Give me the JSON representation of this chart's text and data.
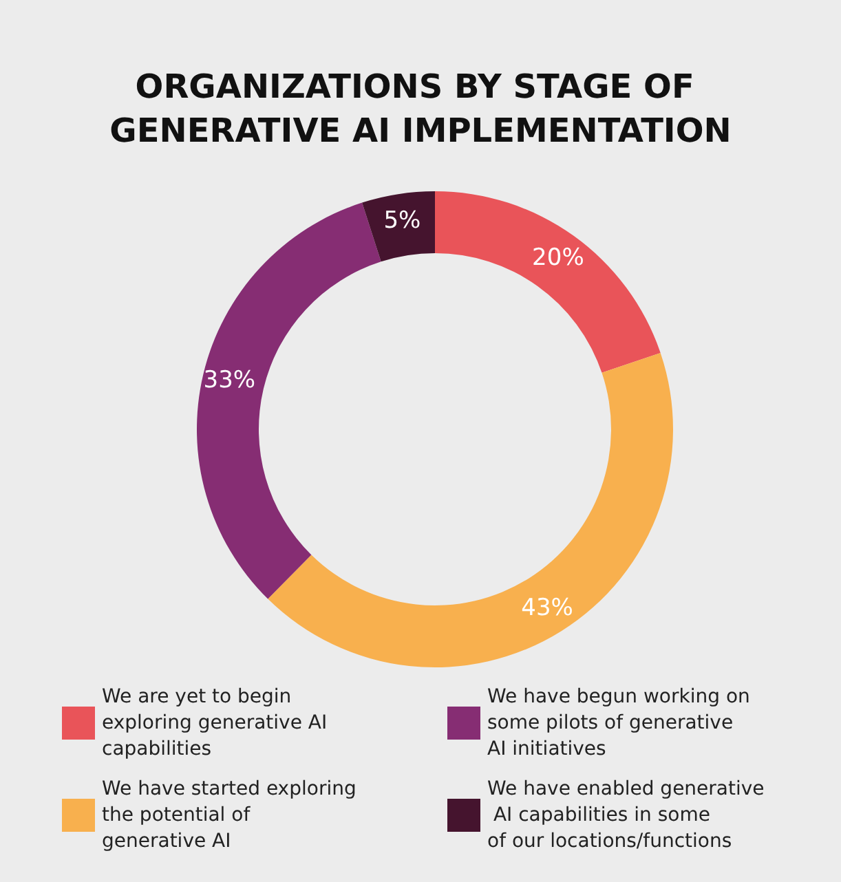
{
  "chart_data": {
    "type": "donut",
    "title": "ORGANIZATIONS BY STAGE OF GENERATIVE AI IMPLEMENTATION",
    "categories": [
      "We are yet to begin exploring generative AI capabilities",
      "We have started exploring the potential of generative AI",
      "We have begun working on some pilots of generative AI initiatives",
      "We have enabled generative AI capabilities in some of our locations/functions"
    ],
    "values": [
      20,
      43,
      33,
      5
    ],
    "colors": [
      "#e95459",
      "#f8b04e",
      "#862d73",
      "#45142e"
    ],
    "value_labels": [
      "20%",
      "43%",
      "33%",
      "5%"
    ],
    "legend": "bottom"
  }
}
